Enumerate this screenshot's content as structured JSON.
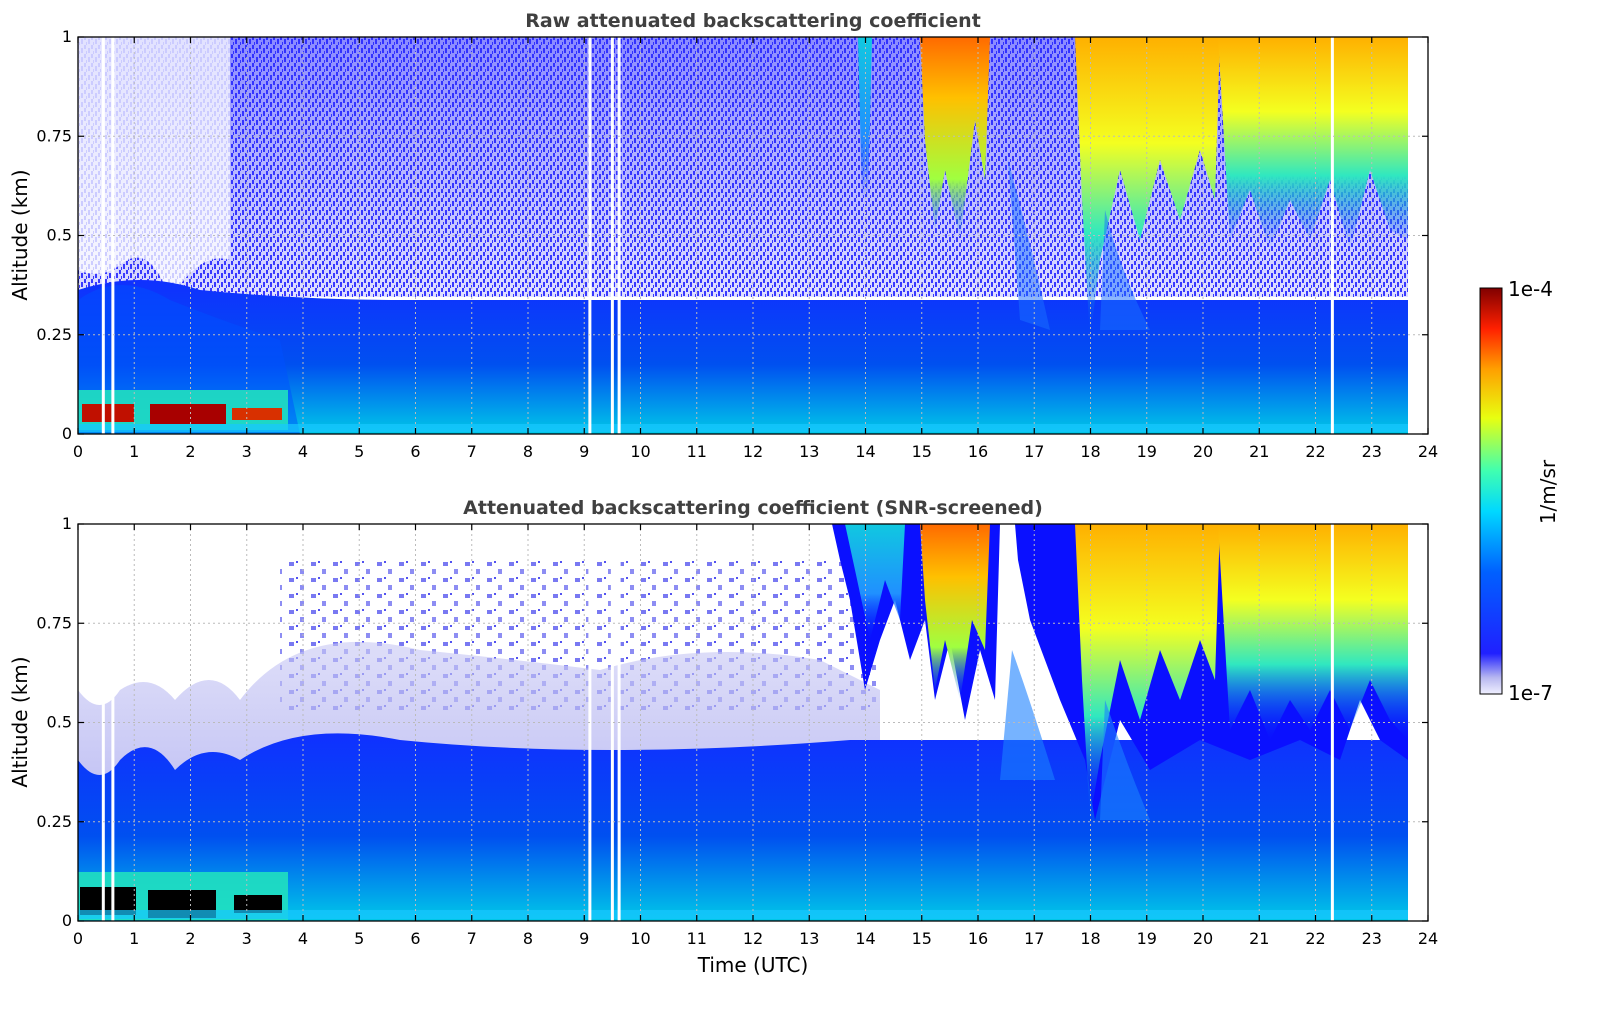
{
  "chart_data": [
    {
      "type": "heatmap",
      "title": "Raw attenuated backscattering coefficient",
      "xlabel": "",
      "ylabel": "Altitude (km)",
      "xlim": [
        0,
        24
      ],
      "ylim": [
        0,
        1
      ],
      "x_ticks": [
        "0",
        "1",
        "2",
        "3",
        "4",
        "5",
        "6",
        "7",
        "8",
        "9",
        "10",
        "11",
        "12",
        "13",
        "14",
        "15",
        "16",
        "17",
        "18",
        "19",
        "20",
        "21",
        "22",
        "23",
        "24"
      ],
      "y_ticks": [
        "0",
        "0.25",
        "0.5",
        "0.75",
        "1"
      ],
      "y_tick_values": [
        0,
        0.25,
        0.5,
        0.75,
        1
      ],
      "grid": true,
      "data_end_hour": 23.65,
      "gap_hours": [
        0.45,
        0.62,
        9.1,
        9.5,
        9.62,
        22.3
      ]
    },
    {
      "type": "heatmap",
      "title": "Attenuated backscattering coefficient (SNR-screened)",
      "xlabel": "Time (UTC)",
      "ylabel": "Altitude (km)",
      "xlim": [
        0,
        24
      ],
      "ylim": [
        0,
        1
      ],
      "x_ticks": [
        "0",
        "1",
        "2",
        "3",
        "4",
        "5",
        "6",
        "7",
        "8",
        "9",
        "10",
        "11",
        "12",
        "13",
        "14",
        "15",
        "16",
        "17",
        "18",
        "19",
        "20",
        "21",
        "22",
        "23",
        "24"
      ],
      "y_ticks": [
        "0",
        "0.25",
        "0.5",
        "0.75",
        "1"
      ],
      "y_tick_values": [
        0,
        0.25,
        0.5,
        0.75,
        1
      ],
      "grid": true,
      "data_end_hour": 23.65,
      "gap_hours": [
        0.45,
        0.62,
        9.1,
        9.5,
        9.62,
        22.3
      ]
    }
  ],
  "colorbar": {
    "label": "1/m/sr",
    "max_label": "1e-4",
    "min_label": "1e-7",
    "colormap": "jet",
    "scale": "log"
  },
  "colors": {
    "title": "#404040",
    "axis": "#000000",
    "grid": "#bbbbbb"
  }
}
